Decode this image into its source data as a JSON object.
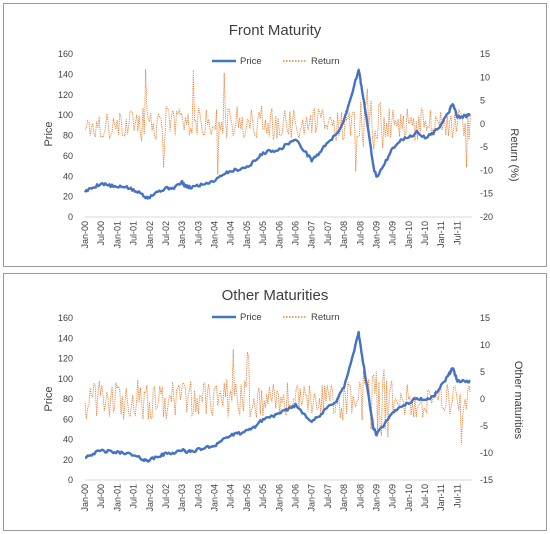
{
  "chart_data": [
    {
      "type": "line",
      "title": "Front Maturity",
      "ylabel": "Price",
      "y2label": "Return (%)",
      "ylim": [
        0,
        160
      ],
      "y2lim": [
        -20,
        15
      ],
      "yticks": [
        "0",
        "20",
        "40",
        "60",
        "80",
        "100",
        "120",
        "140",
        "160"
      ],
      "y2ticks": [
        "-20",
        "-15",
        "-10",
        "-5",
        "0",
        "5",
        "10",
        "15"
      ],
      "categories": [
        "Jan-00",
        "Jul-00",
        "Jan-01",
        "Jul-01",
        "Jan-02",
        "Jul-02",
        "Jan-03",
        "Jul-03",
        "Jan-04",
        "Jul-04",
        "Jan-05",
        "Jul-05",
        "Jan-06",
        "Jul-06",
        "Jan-07",
        "Jul-07",
        "Jan-08",
        "Jul-08",
        "Jan-09",
        "Jul-09",
        "Jan-10",
        "Jul-10",
        "Jan-11",
        "Jul-11"
      ],
      "legend_position": "top",
      "series": [
        {
          "name": "Price",
          "axis": "left",
          "style": "solid",
          "color": "#4472c4",
          "x": [
            2000.0,
            2000.25,
            2000.5,
            2000.75,
            2001.0,
            2001.25,
            2001.5,
            2001.75,
            2001.9,
            2002.0,
            2002.25,
            2002.5,
            2002.75,
            2003.0,
            2003.1,
            2003.25,
            2003.5,
            2003.75,
            2004.0,
            2004.25,
            2004.5,
            2004.75,
            2005.0,
            2005.25,
            2005.5,
            2005.75,
            2006.0,
            2006.25,
            2006.5,
            2006.75,
            2007.0,
            2007.25,
            2007.5,
            2007.75,
            2008.0,
            2008.25,
            2008.45,
            2008.55,
            2008.75,
            2008.9,
            2009.0,
            2009.25,
            2009.5,
            2009.75,
            2010.0,
            2010.25,
            2010.5,
            2010.75,
            2011.0,
            2011.25,
            2011.35,
            2011.5,
            2011.75,
            2011.9
          ],
          "values": [
            25,
            29,
            33,
            31,
            29,
            30,
            26,
            23,
            19,
            20,
            25,
            28,
            29,
            34,
            30,
            29,
            31,
            33,
            36,
            42,
            45,
            47,
            49,
            55,
            63,
            65,
            66,
            72,
            76,
            66,
            56,
            63,
            74,
            80,
            95,
            122,
            145,
            125,
            85,
            50,
            39,
            52,
            68,
            76,
            78,
            83,
            78,
            82,
            91,
            104,
            112,
            98,
            99,
            100
          ]
        },
        {
          "name": "Return",
          "axis": "right",
          "style": "dotted",
          "color": "#ed7d31",
          "band": {
            "x_start": 2000.0,
            "x_end": 2011.9,
            "samples": 300,
            "base": 0,
            "typical_amplitude": 2.5,
            "volatile_period": [
              2008.5,
              2009.5
            ],
            "volatile_amplitude": 5,
            "min": -11,
            "max": 12
          }
        }
      ]
    },
    {
      "type": "line",
      "title": "Other Maturities",
      "ylabel": "Price",
      "y2label": "Other maturities",
      "ylim": [
        0,
        160
      ],
      "y2lim": [
        -15,
        15
      ],
      "yticks": [
        "0",
        "20",
        "40",
        "60",
        "80",
        "100",
        "120",
        "140",
        "160"
      ],
      "y2ticks": [
        "-15",
        "-10",
        "-5",
        "0",
        "5",
        "10",
        "15"
      ],
      "categories": [
        "Jan-00",
        "Jul-00",
        "Jan-01",
        "Jul-01",
        "Jan-02",
        "Jul-02",
        "Jan-03",
        "Jul-03",
        "Jan-04",
        "Jul-04",
        "Jan-05",
        "Jul-05",
        "Jan-06",
        "Jul-06",
        "Jan-07",
        "Jul-07",
        "Jan-08",
        "Jul-08",
        "Jan-09",
        "Jul-09",
        "Jan-10",
        "Jul-10",
        "Jan-11",
        "Jul-11"
      ],
      "legend_position": "top",
      "series": [
        {
          "name": "Price",
          "axis": "left",
          "style": "solid",
          "color": "#4472c4",
          "x": [
            2000.0,
            2000.25,
            2000.5,
            2000.75,
            2001.0,
            2001.25,
            2001.5,
            2001.75,
            2001.9,
            2002.0,
            2002.25,
            2002.5,
            2002.75,
            2003.0,
            2003.1,
            2003.25,
            2003.5,
            2003.75,
            2004.0,
            2004.25,
            2004.5,
            2004.75,
            2005.0,
            2005.25,
            2005.5,
            2005.75,
            2006.0,
            2006.25,
            2006.5,
            2006.75,
            2007.0,
            2007.25,
            2007.5,
            2007.75,
            2008.0,
            2008.25,
            2008.45,
            2008.55,
            2008.75,
            2008.9,
            2009.0,
            2009.25,
            2009.5,
            2009.75,
            2010.0,
            2010.25,
            2010.5,
            2010.75,
            2011.0,
            2011.25,
            2011.35,
            2011.5,
            2011.75,
            2011.9
          ],
          "values": [
            23,
            26,
            29,
            28,
            27,
            27,
            24,
            21,
            19,
            20,
            23,
            26,
            27,
            30,
            28,
            28,
            30,
            32,
            34,
            40,
            44,
            46,
            48,
            53,
            60,
            63,
            65,
            70,
            74,
            66,
            58,
            63,
            72,
            78,
            92,
            120,
            145,
            124,
            84,
            52,
            45,
            55,
            66,
            73,
            76,
            81,
            79,
            82,
            93,
            105,
            111,
            98,
            97,
            98
          ]
        },
        {
          "name": "Return",
          "axis": "right",
          "style": "dotted",
          "color": "#ed7d31",
          "band": {
            "x_start": 2000.0,
            "x_end": 2011.9,
            "samples": 300,
            "base": 0,
            "typical_amplitude": 2.5,
            "volatile_period": [
              2008.5,
              2009.5
            ],
            "volatile_amplitude": 5,
            "min": -9,
            "max": 10
          }
        }
      ]
    }
  ]
}
